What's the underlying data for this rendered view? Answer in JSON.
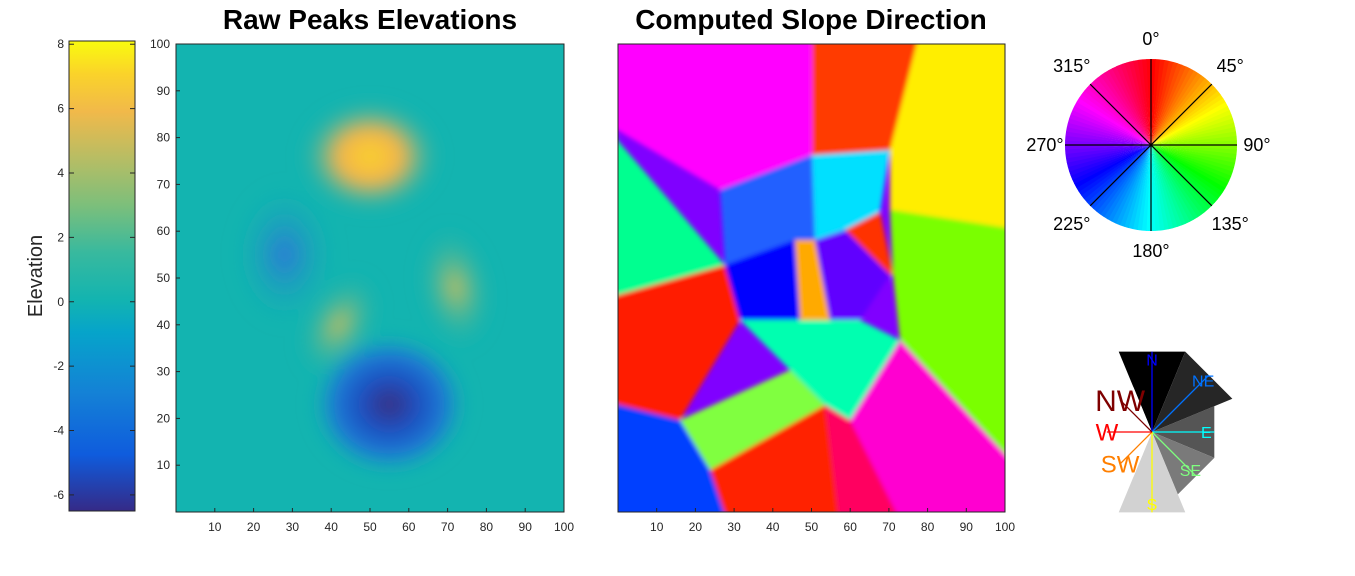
{
  "chart_data": [
    {
      "type": "colorbar",
      "label": "Elevation",
      "range": [
        -6.5,
        8.1
      ],
      "ticks": [
        "8",
        "6",
        "4",
        "2",
        "0",
        "-2",
        "-4",
        "-6"
      ],
      "tick_values": [
        8,
        6,
        4,
        2,
        0,
        -2,
        -4,
        -6
      ],
      "colormap": "parula"
    },
    {
      "type": "heatmap",
      "title": "Raw Peaks Elevations",
      "xlim": [
        0,
        100
      ],
      "ylim": [
        0,
        100
      ],
      "xticks": [
        "10",
        "20",
        "30",
        "40",
        "50",
        "60",
        "70",
        "80",
        "90",
        "100"
      ],
      "yticks": [
        "100",
        "90",
        "80",
        "70",
        "60",
        "50",
        "40",
        "30",
        "20",
        "10"
      ],
      "features": [
        {
          "x": 50,
          "y": 76,
          "value": 8.0,
          "kind": "peak"
        },
        {
          "x": 72,
          "y": 48,
          "value": 3.0,
          "kind": "peak"
        },
        {
          "x": 42,
          "y": 40,
          "value": 3.2,
          "kind": "peak"
        },
        {
          "x": 28,
          "y": 55,
          "value": -3.0,
          "kind": "trough"
        },
        {
          "x": 55,
          "y": 23,
          "value": -6.5,
          "kind": "trough"
        }
      ]
    },
    {
      "type": "heatmap",
      "title": "Computed Slope Direction",
      "xlim": [
        0,
        100
      ],
      "ylim": [
        0,
        100
      ],
      "xticks": [
        "10",
        "20",
        "30",
        "40",
        "50",
        "60",
        "70",
        "80",
        "90",
        "100"
      ],
      "colormap": "hsv"
    },
    {
      "type": "pie",
      "labels": [
        "0°",
        "45°",
        "90°",
        "135°",
        "180°",
        "225°",
        "270°",
        "315°"
      ],
      "colormap": "hsv"
    },
    {
      "type": "pie",
      "labels": [
        "N",
        "NE",
        "E",
        "SE",
        "S",
        "SW",
        "W",
        "NW"
      ],
      "label_colors": [
        "#0000ff",
        "#0072ff",
        "#00ffff",
        "#7fff7f",
        "#ffff00",
        "#ff7f00",
        "#ff0000",
        "#7f0000"
      ],
      "sector_lengths": [
        0.98,
        0.98,
        0.76,
        0.76,
        0.98,
        0.55,
        0.55,
        0.55
      ]
    }
  ]
}
